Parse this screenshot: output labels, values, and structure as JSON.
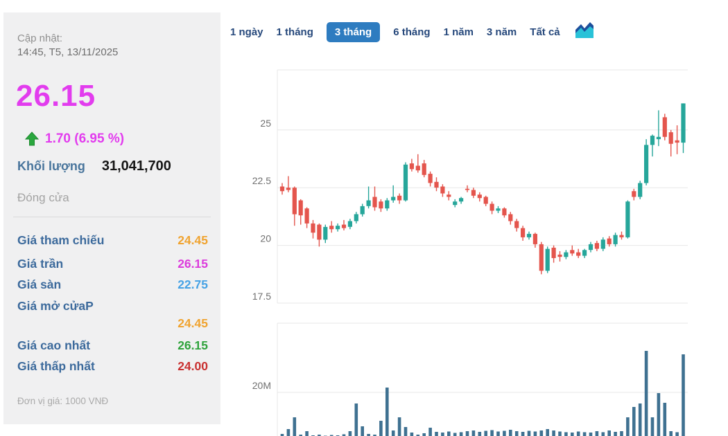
{
  "panel": {
    "updated_label": "Cập nhật:",
    "updated_time": "14:45, T5, 13/11/2025",
    "price": "26.15",
    "change": "1.70 (6.95 %)",
    "change_color": "#e23cee",
    "arrow_color": "#2aa73e",
    "volume_label": "Khối lượng",
    "volume_value": "31,041,700",
    "close_label": "Đóng cửa",
    "rows": [
      {
        "label": "Giá tham chiếu",
        "value": "24.45",
        "color": "#f0a32f"
      },
      {
        "label": "Giá trần",
        "value": "26.15",
        "color": "#dc3bdc"
      },
      {
        "label": "Giá sàn",
        "value": "22.75",
        "color": "#46a2e5"
      },
      {
        "label": "Giá mở cửa",
        "suffix": "P",
        "value": "24.45",
        "color": "#f0a32f"
      },
      {
        "label": "Giá cao nhất",
        "value": "26.15",
        "color": "#2fa33c"
      },
      {
        "label": "Giá thấp nhất",
        "value": "24.00",
        "color": "#c93030"
      }
    ],
    "unit_note": "Đơn vị giá: 1000 VNĐ"
  },
  "tabs": {
    "items": [
      "1 ngày",
      "1 tháng",
      "3 tháng",
      "6 tháng",
      "1 năm",
      "3 năm",
      "Tất cả"
    ],
    "selected_index": 2,
    "selected_bg": "#2e7cc0",
    "text_color": "#27497c"
  },
  "chart_data": {
    "type": "candlestick_with_volume",
    "period": "3 tháng",
    "grid": true,
    "legend": "none",
    "up_color": "#26a69a",
    "down_color": "#e4554d",
    "volume_color": "#3f7191",
    "grid_color": "#e7e7e7",
    "label_color": "#6f6f6f",
    "price_axis": {
      "range": [
        17.5,
        27.6
      ],
      "ticks": [
        25,
        22.5,
        20,
        17.5
      ],
      "tick_labels": [
        "25",
        "22.5",
        "20",
        "17.5"
      ],
      "side": "left"
    },
    "volume_axis": {
      "range_m": [
        0,
        40
      ],
      "ticks_m": [
        20
      ],
      "tick_labels": [
        "20M"
      ],
      "side": "left"
    },
    "candles_ohlc": [
      [
        22.55,
        22.7,
        22.2,
        22.35
      ],
      [
        22.5,
        23.0,
        22.3,
        22.4
      ],
      [
        22.5,
        22.55,
        20.85,
        21.35
      ],
      [
        21.95,
        22.0,
        20.9,
        21.3
      ],
      [
        21.6,
        21.65,
        20.75,
        20.95
      ],
      [
        20.95,
        21.1,
        20.3,
        20.55
      ],
      [
        20.9,
        20.95,
        19.95,
        20.25
      ],
      [
        20.25,
        20.9,
        20.1,
        20.8
      ],
      [
        20.85,
        21.05,
        20.55,
        20.7
      ],
      [
        20.7,
        20.95,
        20.6,
        20.85
      ],
      [
        20.9,
        21.1,
        20.65,
        20.75
      ],
      [
        20.8,
        21.15,
        20.7,
        21.05
      ],
      [
        21.05,
        21.45,
        20.95,
        21.35
      ],
      [
        21.35,
        21.8,
        21.25,
        21.7
      ],
      [
        21.7,
        22.55,
        21.6,
        21.95
      ],
      [
        22.1,
        22.55,
        21.5,
        21.65
      ],
      [
        21.9,
        22.0,
        21.45,
        21.6
      ],
      [
        21.6,
        22.05,
        21.5,
        21.95
      ],
      [
        21.95,
        22.6,
        21.85,
        22.1
      ],
      [
        22.15,
        22.25,
        21.8,
        21.95
      ],
      [
        21.95,
        23.6,
        21.9,
        23.5
      ],
      [
        23.55,
        23.75,
        23.2,
        23.3
      ],
      [
        23.45,
        23.95,
        23.15,
        23.25
      ],
      [
        23.55,
        23.7,
        22.95,
        23.05
      ],
      [
        23.1,
        23.2,
        22.55,
        22.7
      ],
      [
        22.75,
        22.95,
        22.35,
        22.5
      ],
      [
        22.55,
        22.65,
        22.1,
        22.25
      ],
      [
        22.2,
        22.35,
        21.95,
        22.1
      ],
      [
        21.75,
        22.0,
        21.65,
        21.9
      ],
      [
        21.9,
        22.1,
        21.8,
        22.05
      ],
      [
        22.45,
        22.6,
        22.3,
        22.4
      ],
      [
        22.4,
        22.5,
        22.05,
        22.15
      ],
      [
        22.2,
        22.3,
        21.9,
        22.05
      ],
      [
        22.1,
        22.15,
        21.7,
        21.8
      ],
      [
        21.8,
        21.9,
        21.35,
        21.5
      ],
      [
        21.5,
        21.7,
        21.4,
        21.6
      ],
      [
        21.6,
        21.65,
        21.2,
        21.3
      ],
      [
        21.35,
        21.45,
        20.9,
        21.05
      ],
      [
        21.05,
        21.15,
        20.6,
        20.75
      ],
      [
        20.75,
        20.85,
        20.2,
        20.35
      ],
      [
        20.35,
        20.6,
        20.25,
        20.5
      ],
      [
        20.5,
        20.55,
        19.9,
        20.05
      ],
      [
        20.05,
        20.15,
        18.75,
        18.9
      ],
      [
        18.9,
        19.95,
        18.8,
        19.85
      ],
      [
        19.9,
        20.0,
        19.25,
        19.45
      ],
      [
        19.6,
        19.75,
        19.3,
        19.5
      ],
      [
        19.5,
        19.8,
        19.4,
        19.7
      ],
      [
        19.8,
        20.0,
        19.55,
        19.65
      ],
      [
        19.7,
        19.85,
        19.45,
        19.55
      ],
      [
        19.55,
        19.85,
        19.45,
        19.8
      ],
      [
        19.8,
        20.15,
        19.7,
        20.05
      ],
      [
        20.1,
        20.2,
        19.75,
        19.85
      ],
      [
        19.85,
        20.35,
        19.75,
        20.25
      ],
      [
        20.3,
        20.4,
        19.95,
        20.05
      ],
      [
        20.05,
        20.55,
        19.95,
        20.45
      ],
      [
        20.45,
        20.6,
        20.25,
        20.35
      ],
      [
        20.35,
        21.95,
        20.3,
        21.9
      ],
      [
        22.35,
        22.45,
        21.95,
        22.1
      ],
      [
        22.1,
        22.8,
        22.0,
        22.7
      ],
      [
        22.7,
        24.6,
        22.6,
        24.35
      ],
      [
        24.35,
        24.8,
        23.85,
        24.75
      ],
      [
        24.6,
        25.85,
        24.3,
        24.7
      ],
      [
        25.55,
        25.7,
        24.55,
        24.7
      ],
      [
        24.9,
        25.0,
        23.85,
        24.4
      ],
      [
        24.55,
        25.2,
        23.95,
        24.45
      ],
      [
        24.45,
        26.15,
        24.0,
        26.15
      ]
    ],
    "volumes_m": [
      8.0,
      9.4,
      12.8,
      7.8,
      8.8,
      7.6,
      7.8,
      7.5,
      7.7,
      7.6,
      7.9,
      8.8,
      16.8,
      10.2,
      8.0,
      7.8,
      11.8,
      21.4,
      9.0,
      12.8,
      10.0,
      8.4,
      7.8,
      8.2,
      9.8,
      8.6,
      8.4,
      8.7,
      8.3,
      8.5,
      8.8,
      9.0,
      8.6,
      8.9,
      9.1,
      8.7,
      8.9,
      9.2,
      8.8,
      8.6,
      8.9,
      8.7,
      9.0,
      9.4,
      9.0,
      8.7,
      8.5,
      8.4,
      8.7,
      8.5,
      8.4,
      8.8,
      8.5,
      9.0,
      8.6,
      8.8,
      12.8,
      15.8,
      16.8,
      32.0,
      12.8,
      19.8,
      17.0,
      8.8,
      8.5,
      31.0
    ],
    "last_price": 26.15,
    "last_volume": "31,041,700"
  }
}
